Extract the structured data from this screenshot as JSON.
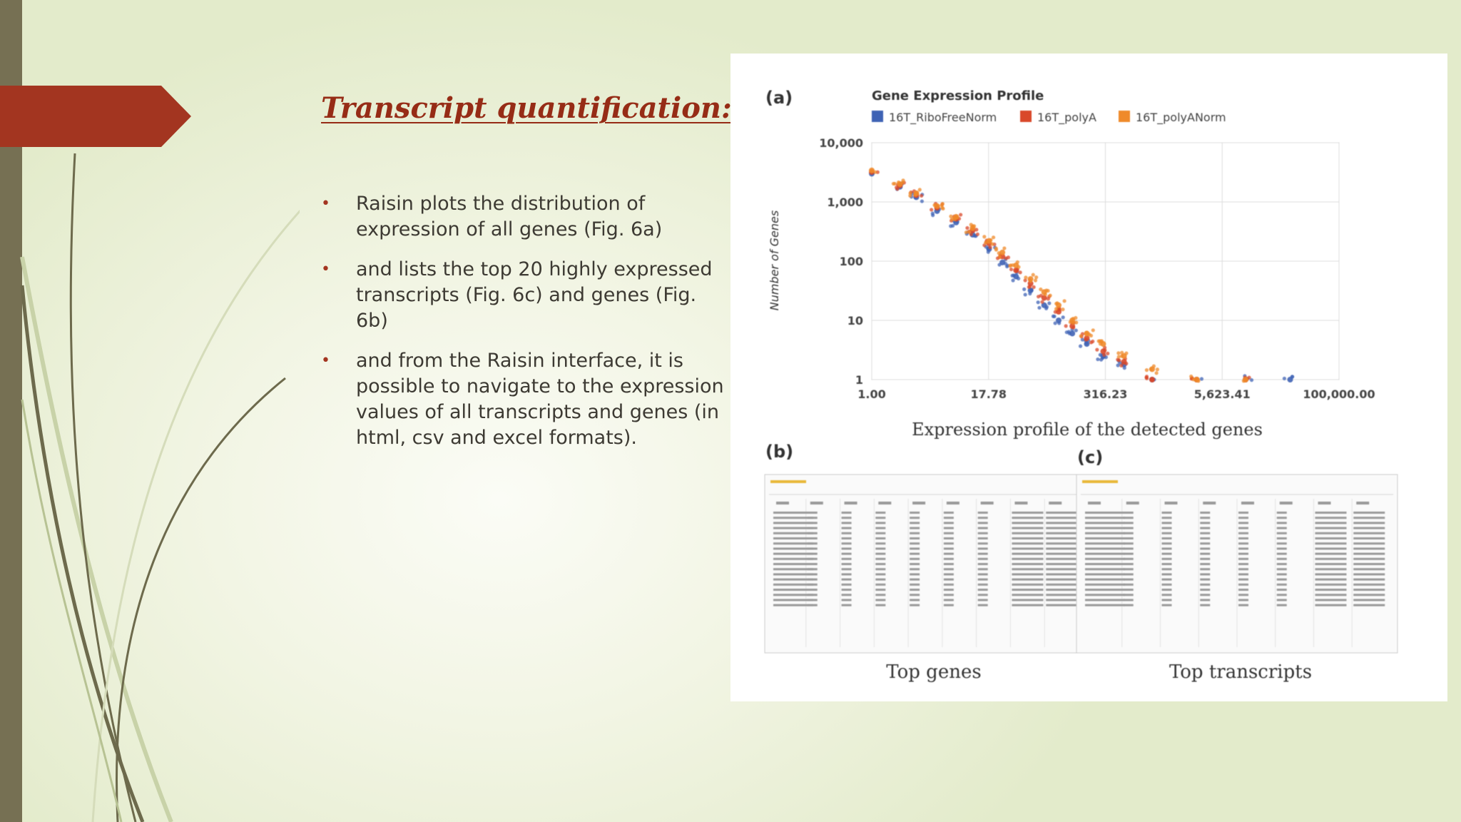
{
  "slide": {
    "title": "Transcript quantification:",
    "bullets": [
      "Raisin plots the distribution of expression of all genes (Fig. 6a)",
      "and lists the top 20 highly expressed transcripts (Fig. 6c) and genes (Fig. 6b)",
      "and from the Raisin interface, it is possible to navigate to the expression values of all transcripts and genes (in html, csv and excel formats)."
    ],
    "bullet_symbol": "•",
    "colors": {
      "accent": "#962c16",
      "banner": "#a33520",
      "bar": "#767053"
    }
  },
  "figure": {
    "panel_a_label": "(a)",
    "panel_b_label": "(b)",
    "panel_c_label": "(c)",
    "caption_b": "Top genes",
    "caption_c": "Top transcripts"
  },
  "chart_data": {
    "type": "scatter",
    "title": "Gene Expression Profile",
    "xlabel": "Expression profile of the detected genes",
    "ylabel": "Number of Genes",
    "x_scale": "log",
    "y_scale": "log",
    "x_ticks": [
      "1.00",
      "17.78",
      "316.23",
      "5,623.41",
      "100,000.00"
    ],
    "y_ticks": [
      "10,000",
      "1,000",
      "100",
      "10",
      "1"
    ],
    "xlim": [
      1,
      100000
    ],
    "ylim": [
      1,
      10000
    ],
    "grid": true,
    "legend_position": "top",
    "series": [
      {
        "name": "16T_RiboFreeNorm",
        "color": "#3f63b5",
        "x": [
          1,
          2,
          3,
          5,
          8,
          12,
          18,
          25,
          35,
          50,
          70,
          100,
          140,
          200,
          300,
          500,
          1000,
          3000,
          10000,
          30000
        ],
        "y": [
          3000,
          1800,
          1200,
          700,
          450,
          280,
          160,
          95,
          55,
          32,
          18,
          10,
          6,
          4,
          2.5,
          1.8,
          1,
          1,
          1,
          1
        ]
      },
      {
        "name": "16T_polyA",
        "color": "#d9482a",
        "x": [
          1,
          2,
          3,
          5,
          8,
          12,
          18,
          25,
          35,
          50,
          70,
          100,
          140,
          200,
          300,
          500,
          1000,
          3000,
          10000
        ],
        "y": [
          3200,
          1900,
          1300,
          800,
          520,
          330,
          200,
          120,
          70,
          42,
          24,
          14,
          8,
          5,
          3,
          2,
          1,
          1,
          1
        ]
      },
      {
        "name": "16T_polyANorm",
        "color": "#ef8a2a",
        "x": [
          1,
          2,
          3,
          5,
          8,
          12,
          18,
          25,
          35,
          50,
          70,
          100,
          140,
          200,
          300,
          500,
          1000,
          3000,
          10000
        ],
        "y": [
          3400,
          2000,
          1400,
          850,
          560,
          360,
          220,
          140,
          85,
          50,
          30,
          18,
          10,
          6,
          4,
          2.5,
          1.5,
          1,
          1
        ]
      }
    ]
  }
}
